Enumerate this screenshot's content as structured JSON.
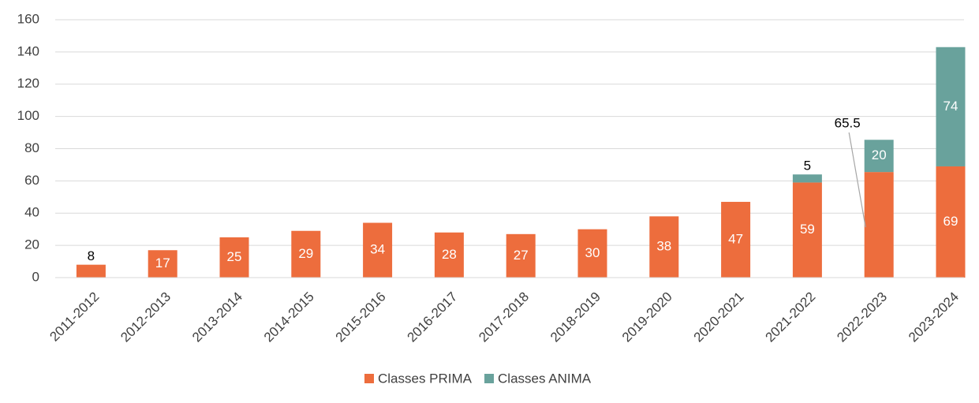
{
  "chart_data": {
    "type": "stacked_bar",
    "categories": [
      "2011-2012",
      "2012-2013",
      "2013-2014",
      "2014-2015",
      "2015-2016",
      "2016-2017",
      "2017-2018",
      "2018-2019",
      "2019-2020",
      "2020-2021",
      "2021-2022",
      "2022-2023",
      "2023-2024"
    ],
    "series": [
      {
        "name": "Classes PRIMA",
        "color": "#ed6d3d",
        "values": [
          8,
          17,
          25,
          29,
          34,
          28,
          27,
          30,
          38,
          47,
          59,
          65.5,
          69
        ]
      },
      {
        "name": "Classes ANIMA",
        "color": "#69a29c",
        "values": [
          null,
          null,
          null,
          null,
          null,
          null,
          null,
          null,
          null,
          null,
          5,
          20,
          74
        ]
      }
    ],
    "ylim": [
      0,
      160
    ],
    "yticks": [
      0,
      20,
      40,
      60,
      80,
      100,
      120,
      140,
      160
    ],
    "grid": true,
    "legend": "bottom"
  }
}
